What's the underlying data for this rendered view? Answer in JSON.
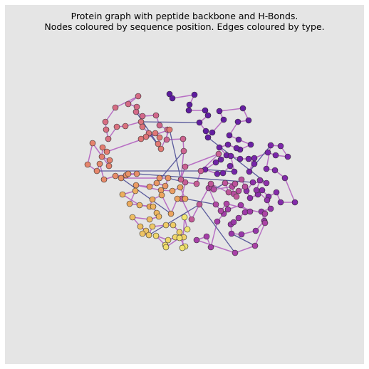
{
  "figure": {
    "title_line1": "Protein graph with peptide backbone and H-Bonds.",
    "title_line2": "Nodes coloured by sequence position. Edges coloured by type."
  },
  "colors": {
    "background": "#e5e5e5",
    "peptide_edge": "#b86fc4",
    "hbond_edge": "#5a5a9c",
    "node_outline": "#2b2b2b",
    "colormap": "plasma (purple to yellow)"
  },
  "graph": {
    "node_count": 190,
    "edge_types": [
      "peptide_bond",
      "hbond"
    ]
  }
}
